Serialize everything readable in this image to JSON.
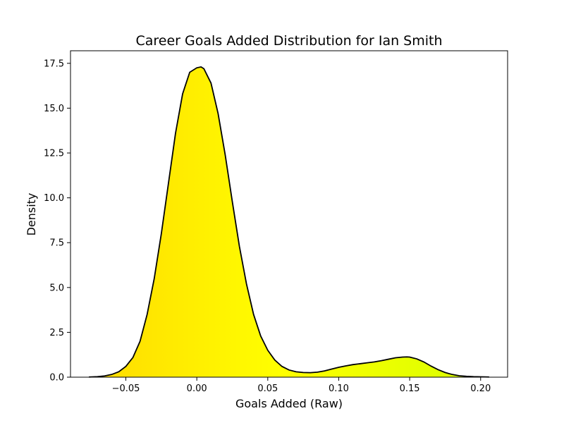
{
  "chart_data": {
    "type": "area",
    "title": "Career Goals Added Distribution for Ian Smith",
    "xlabel": "Goals Added (Raw)",
    "ylabel": "Density",
    "xlim": [
      -0.089,
      0.219
    ],
    "ylim": [
      0,
      18.2
    ],
    "x_ticks": [
      -0.05,
      0.0,
      0.05,
      0.1,
      0.15,
      0.2
    ],
    "x_tick_labels": [
      "−0.05",
      "0.00",
      "0.05",
      "0.10",
      "0.15",
      "0.20"
    ],
    "y_ticks": [
      0.0,
      2.5,
      5.0,
      7.5,
      10.0,
      12.5,
      15.0,
      17.5
    ],
    "y_tick_labels": [
      "0.0",
      "2.5",
      "5.0",
      "7.5",
      "10.0",
      "12.5",
      "15.0",
      "17.5"
    ],
    "grid": false,
    "series": [
      {
        "x": [
          -0.076,
          -0.07,
          -0.065,
          -0.06,
          -0.055,
          -0.05,
          -0.045,
          -0.04,
          -0.035,
          -0.03,
          -0.025,
          -0.02,
          -0.015,
          -0.01,
          -0.005,
          0.0,
          0.003,
          0.005,
          0.01,
          0.015,
          0.02,
          0.025,
          0.03,
          0.035,
          0.04,
          0.045,
          0.05,
          0.055,
          0.06,
          0.065,
          0.07,
          0.075,
          0.08,
          0.085,
          0.09,
          0.095,
          0.1,
          0.105,
          0.11,
          0.115,
          0.12,
          0.125,
          0.13,
          0.135,
          0.14,
          0.145,
          0.148,
          0.15,
          0.155,
          0.16,
          0.165,
          0.17,
          0.175,
          0.18,
          0.185,
          0.19,
          0.195,
          0.2,
          0.206
        ],
        "y": [
          0.01,
          0.03,
          0.07,
          0.15,
          0.3,
          0.6,
          1.1,
          2.0,
          3.5,
          5.5,
          8.0,
          10.8,
          13.6,
          15.8,
          17.0,
          17.25,
          17.3,
          17.2,
          16.4,
          14.7,
          12.4,
          9.8,
          7.3,
          5.2,
          3.5,
          2.3,
          1.5,
          0.95,
          0.6,
          0.4,
          0.3,
          0.26,
          0.25,
          0.28,
          0.35,
          0.45,
          0.55,
          0.63,
          0.7,
          0.75,
          0.8,
          0.85,
          0.92,
          1.0,
          1.08,
          1.12,
          1.13,
          1.12,
          1.02,
          0.85,
          0.62,
          0.42,
          0.26,
          0.15,
          0.08,
          0.05,
          0.03,
          0.02,
          0.01
        ]
      }
    ],
    "fill_colors": [
      "#ffd700",
      "#ffff00",
      "#d4ff00"
    ],
    "line_color": "#000000"
  }
}
